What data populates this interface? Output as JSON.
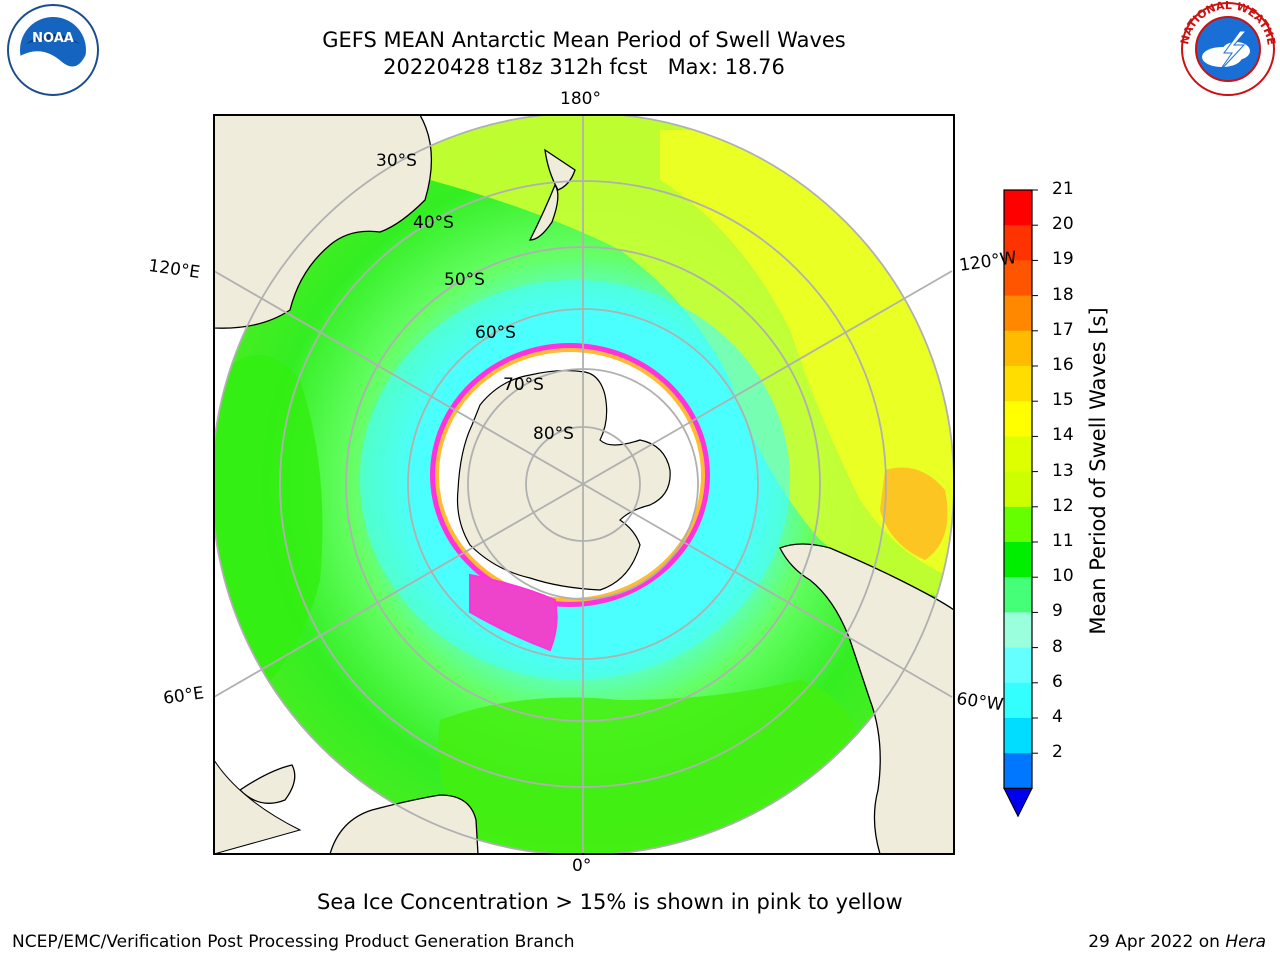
{
  "header": {
    "title_line1": "GEFS MEAN Antarctic Mean Period of Swell Waves",
    "title_line2": "20220428 t18z 312h fcst   Max: 18.76"
  },
  "logos": {
    "left": "noaa-logo",
    "right": "nws-logo",
    "left_text": "NOAA",
    "right_text": "NATIONAL WEATHER SERVICE"
  },
  "map": {
    "projection": "south polar stereographic",
    "meridian_labels": {
      "top": "180°",
      "bottom": "0°",
      "upper_left": "120°E",
      "upper_right": "120°W",
      "lower_left": "60°E",
      "lower_right": "60°W"
    },
    "latitude_labels": [
      "30°S",
      "40°S",
      "50°S",
      "60°S",
      "70°S",
      "80°S"
    ],
    "colors": {
      "land": "#efecdc",
      "sea_ice_low": "#ff33dd",
      "sea_ice_high": "#ffee33"
    }
  },
  "colorbar": {
    "label": "Mean Period of Swell Waves [s]",
    "ticks": [
      "21",
      "20",
      "19",
      "18",
      "17",
      "16",
      "15",
      "14",
      "13",
      "12",
      "11",
      "10",
      "9",
      "8",
      "6",
      "4",
      "2"
    ],
    "colors": [
      "#ff0000",
      "#ff3300",
      "#ff5500",
      "#ff8800",
      "#ffbb00",
      "#ffdd00",
      "#ffff00",
      "#ddff00",
      "#ccff00",
      "#66ff00",
      "#00ee00",
      "#44ff77",
      "#99ffdd",
      "#66ffff",
      "#33ffff",
      "#00ddff",
      "#0077ff",
      "#0000ee"
    ]
  },
  "footer": {
    "note": "Sea Ice Concentration > 15% is shown in pink to yellow",
    "credit": "NCEP/EMC/Verification Post Processing Product Generation Branch",
    "date": "29 Apr 2022 on ",
    "machine": "Hera"
  }
}
